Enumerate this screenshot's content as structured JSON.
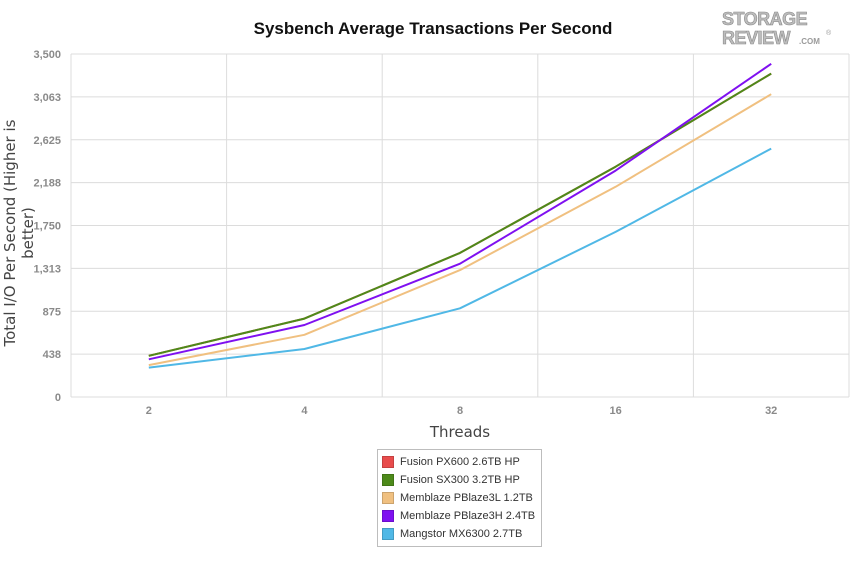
{
  "chart_data": {
    "type": "line",
    "title": "Sysbench Average Transactions Per Second",
    "xlabel": "Threads",
    "ylabel": "Total I/O Per Second (Higher is better)",
    "categories": [
      "2",
      "4",
      "8",
      "16",
      "32"
    ],
    "y_ticks": [
      "0",
      "438",
      "875",
      "1,313",
      "1,750",
      "2,188",
      "2,625",
      "3,063",
      "3,500"
    ],
    "ylim": [
      0,
      3500
    ],
    "grid": true,
    "legend_position": "bottom",
    "series": [
      {
        "name": "Fusion PX600 2.6TB HP",
        "color": "#e84c4c",
        "values": [
          420,
          800,
          1470,
          2350,
          3300
        ]
      },
      {
        "name": "Fusion SX300 3.2TB HP",
        "color": "#4d8a1a",
        "values": [
          420,
          800,
          1470,
          2350,
          3300
        ]
      },
      {
        "name": "Memblaze PBlaze3L 1.2TB",
        "color": "#f0c080",
        "values": [
          325,
          635,
          1295,
          2145,
          3090
        ]
      },
      {
        "name": "Memblaze PBlaze3H 2.4TB",
        "color": "#7f10f0",
        "values": [
          385,
          735,
          1360,
          2310,
          3400
        ]
      },
      {
        "name": "Mangstor MX6300 2.7TB",
        "color": "#50b8e6",
        "values": [
          300,
          490,
          905,
          1685,
          2535
        ]
      }
    ]
  },
  "logo": {
    "line1": "STORAGE",
    "line2": "REVIEW",
    "suffix": ".COM",
    "mark": "®"
  }
}
